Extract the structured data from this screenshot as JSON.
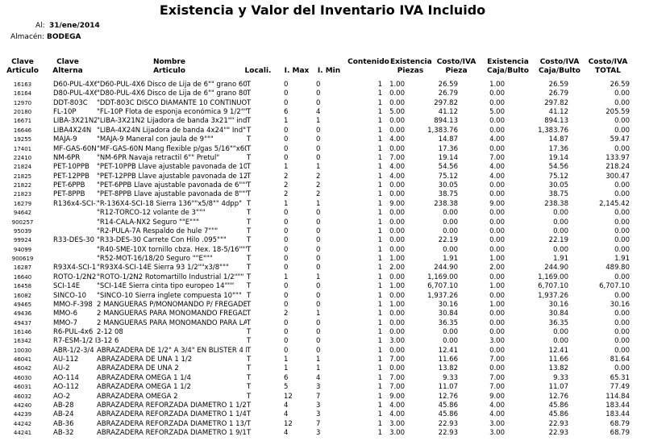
{
  "title": "Existencia y Valor del Inventario IVA Incluido",
  "fecha_label": "Al:",
  "fecha": "31/ene/2014",
  "almacen_label": "Almacén:",
  "almacen": "BODEGA",
  "table": {
    "headers": [
      [
        "Clave",
        "Articulo"
      ],
      [
        "Clave",
        "Alterna"
      ],
      [
        "Nombre",
        "Articulo"
      ],
      [
        "Locali."
      ],
      [
        "I. Max"
      ],
      [
        "I. Min"
      ],
      [
        "Contenido"
      ],
      [
        "Existencia",
        "Piezas"
      ],
      [
        "Costo/IVA",
        "Pieza"
      ],
      [
        "Existencia",
        "Caja/Bulto"
      ],
      [
        "Costo/IVA",
        "Caja/Bulto"
      ],
      [
        "Costo/IVA",
        "TOTAL"
      ]
    ],
    "rows": [
      [
        "16163",
        "D60-PUL-4X6",
        "\"D60-PUL-4X6 Disco de Lija de 6\"\" grano 60\"",
        "T",
        "0",
        "0",
        "1",
        "1.00",
        "26.59",
        "1.00",
        "26.59",
        "26.59"
      ],
      [
        "16164",
        "D80-PUL-4X6",
        "\"D80-PUL-4X6 Disco de Lija de 6\"\" grano 80\"",
        "T",
        "0",
        "0",
        "1",
        "0.00",
        "26.79",
        "0.00",
        "26.79",
        "0.00"
      ],
      [
        "12970",
        "DDT-803C",
        "\"DDT-803C DISCO DIAMANTE 10 CONTINUO",
        "T",
        "0",
        "0",
        "1",
        "0.00",
        "297.82",
        "0.00",
        "297.82",
        "0.00"
      ],
      [
        "20180",
        "FL-10P",
        "\"FL-10P Flota de esponja económica 9 1/2\"\"\"",
        "T",
        "6",
        "4",
        "1",
        "5.00",
        "41.12",
        "5.00",
        "41.12",
        "205.59"
      ],
      [
        "16671",
        "LIBA-3X21N2",
        "\"LIBA-3X21N2 Lijadora de banda 3x21\"\" ind.\"",
        "T",
        "1",
        "1",
        "1",
        "0.00",
        "894.13",
        "0.00",
        "894.13",
        "0.00"
      ],
      [
        "16646",
        "LIBA4X24N",
        "\"LIBA-4X24N Lijadora de banda 4x24\"\" Ind\"",
        "T",
        "0",
        "0",
        "1",
        "0.00",
        "1,383.76",
        "0.00",
        "1,383.76",
        "0.00"
      ],
      [
        "19255",
        "MAJA-9",
        "\"MAJA-9 Maneral con jaula de 9\"\"\"",
        "T",
        "0",
        "0",
        "1",
        "4.00",
        "14.87",
        "4.00",
        "14.87",
        "59.47"
      ],
      [
        "17401",
        "MF-GAS-60N",
        "\"MF-GAS-60N Mang flexible p/gas 5/16\"\"x60\"",
        "T",
        "0",
        "0",
        "1",
        "0.00",
        "17.36",
        "0.00",
        "17.36",
        "0.00"
      ],
      [
        "22410",
        "NM-6PR",
        "\"NM-6PR Navaja retractil 6\"\" Pretul\"",
        "T",
        "0",
        "0",
        "1",
        "7.00",
        "19.14",
        "7.00",
        "19.14",
        "133.97"
      ],
      [
        "21824",
        "PET-10PPB",
        "\"PET-10PPB Llave ajustable pavonada de 10\"\"\"",
        "T",
        "1",
        "1",
        "1",
        "4.00",
        "54.56",
        "4.00",
        "54.56",
        "218.24"
      ],
      [
        "21825",
        "PET-12PPB",
        "\"PET-12PPB Llave ajustable pavonada de 12\"\"\"",
        "T",
        "2",
        "2",
        "1",
        "4.00",
        "75.12",
        "4.00",
        "75.12",
        "300.47"
      ],
      [
        "21822",
        "PET-6PPB",
        "\"PET-6PPB Llave ajustable pavonada de 6\"\"\"",
        "T",
        "2",
        "2",
        "1",
        "0.00",
        "30.05",
        "0.00",
        "30.05",
        "0.00"
      ],
      [
        "21823",
        "PET-8PPB",
        "\"PET-8PPB Llave ajustable pavonada de 8\"\"\"",
        "T",
        "2",
        "2",
        "1",
        "0.00",
        "38.75",
        "0.00",
        "38.75",
        "0.00"
      ],
      [
        "16279",
        "R136x4-SCI-18",
        "\"R-136X4-SCI-18 Sierra 136\"\"x5/8\"\" 4dpp\"",
        "T",
        "1",
        "1",
        "1",
        "9.00",
        "238.38",
        "9.00",
        "238.38",
        "2,145.42"
      ],
      [
        "94642",
        null,
        "\"R12-TORCO-12 volante de 3\"\"\"",
        "T",
        "0",
        "0",
        "1",
        "0.00",
        "0.00",
        "0.00",
        "0.00",
        "0.00"
      ],
      [
        "900257",
        null,
        "\"R14-CALA-NX2 Seguro \"\"E\"\"\"",
        "T",
        "0",
        "0",
        "1",
        "0.00",
        "0.00",
        "0.00",
        "0.00",
        "0.00"
      ],
      [
        "95039",
        null,
        "\"R2-PULA-7A Respaldo de hule 7\"\"\"",
        "T",
        "0",
        "0",
        "1",
        "0.00",
        "0.00",
        "0.00",
        "0.00",
        "0.00"
      ],
      [
        "99924",
        "R33-DES-30",
        "\"R33-DES-30 Carrete Con Hilo .095\"\"\"",
        "T",
        "0",
        "0",
        "1",
        "0.00",
        "22.19",
        "0.00",
        "22.19",
        "0.00"
      ],
      [
        "94099",
        null,
        "\"R40-SME-10X tornillo cbza. Hex. 18-5/16\"\"\"",
        "T",
        "0",
        "0",
        "1",
        "0.00",
        "0.00",
        "0.00",
        "0.00",
        "0.00"
      ],
      [
        "900619",
        null,
        "\"R52-MOT-16/18/20 Seguro \"\"E\"\"\"",
        "T",
        "0",
        "0",
        "1",
        "1.00",
        "1.91",
        "1.00",
        "1.91",
        "1.91"
      ],
      [
        "16287",
        "R93X4-SCI-14E",
        "\"R93X4-SCI-14E Sierra 93 1/2\"\"x3/8\"\"\"",
        "T",
        "0",
        "0",
        "1",
        "2.00",
        "244.90",
        "2.00",
        "244.90",
        "489.80"
      ],
      [
        "16640",
        "ROTO-1/2N2",
        "\"ROTO-1/2N2 Rotomartillo Industrial 1/2\"\"\"",
        "T",
        "1",
        "1",
        "1",
        "0.00",
        "1,169.00",
        "0.00",
        "1,169.00",
        "0.00"
      ],
      [
        "16458",
        "SCI-14E",
        "\"SCI-14E Sierra cinta tipo europeo 14\"\"\"",
        "T",
        "0",
        "0",
        "1",
        "1.00",
        "6,707.10",
        "1.00",
        "6,707.10",
        "6,707.10"
      ],
      [
        "16082",
        "SINCO-10",
        "\"SINCO-10 Sierra inglete compuesta 10\"\"\"",
        "T",
        "0",
        "0",
        "1",
        "0.00",
        "1,937.26",
        "0.00",
        "1,937.26",
        "0.00"
      ],
      [
        "49465",
        "MMO-F-398",
        "2 MANGUERAS P/MONOMANDO P/ FREGADERO",
        "T",
        "0",
        "0",
        "1",
        "1.00",
        "30.16",
        "1.00",
        "30.16",
        "30.16"
      ],
      [
        "49436",
        "MMO-6",
        "2 MANGUERAS PARA MONOMANDO FREGADER",
        "T",
        "2",
        "1",
        "1",
        "0.00",
        "30.84",
        "0.00",
        "30.84",
        "0.00"
      ],
      [
        "49437",
        "MMO-7",
        "2 MANGUERAS PARA MONOMANDO PARA LAVA",
        "T",
        "0",
        "0",
        "1",
        "0.00",
        "36.35",
        "0.00",
        "36.35",
        "0.00"
      ],
      [
        "16146",
        "R6-PUL-4x6",
        "2-12 08",
        "T",
        "0",
        "0",
        "1",
        "0.00",
        "0.00",
        "0.00",
        "0.00",
        "0.00"
      ],
      [
        "16342",
        "R7-ESM-1/2 I",
        "3-12 6",
        "T",
        "0",
        "0",
        "1",
        "3.00",
        "0.00",
        "3.00",
        "0.00",
        "0.00"
      ],
      [
        "10030",
        "ABR-1/2-3/4",
        "ABRAZADERA DE 1/2\" A 3/4\" EN BLISTER 4 PZ",
        "T",
        "0",
        "0",
        "1",
        "0.00",
        "12.41",
        "0.00",
        "12.41",
        "0.00"
      ],
      [
        "46041",
        "AU-112",
        "ABRAZADERA DE UÑA  1 1/2",
        "T",
        "1",
        "1",
        "1",
        "7.00",
        "11.66",
        "7.00",
        "11.66",
        "81.64"
      ],
      [
        "46042",
        "AU-2",
        "ABRAZADERA DE UÑA  2",
        "T",
        "1",
        "1",
        "1",
        "0.00",
        "13.82",
        "0.00",
        "13.82",
        "0.00"
      ],
      [
        "46030",
        "AO-114",
        "ABRAZADERA OMEGA 1 1/4",
        "T",
        "6",
        "4",
        "1",
        "7.00",
        "9.33",
        "7.00",
        "9.33",
        "65.31"
      ],
      [
        "46031",
        "AO-112",
        "ABRAZADERA OMEGA 1 1/2",
        "T",
        "5",
        "3",
        "1",
        "7.00",
        "11.07",
        "7.00",
        "11.07",
        "77.49"
      ],
      [
        "46032",
        "AO-2",
        "ABRAZADERA OMEGA 2",
        "T",
        "12",
        "7",
        "1",
        "9.00",
        "12.76",
        "9.00",
        "12.76",
        "114.84"
      ],
      [
        "44240",
        "AB-28",
        "ABRAZADERA REFORZADA DIAMETRO 1 1/2 X 1",
        "T",
        "4",
        "3",
        "1",
        "4.00",
        "45.86",
        "4.00",
        "45.86",
        "183.44"
      ],
      [
        "44239",
        "AB-24",
        "ABRAZADERA REFORZADA DIAMETRO 1 1/4 X 1",
        "T",
        "4",
        "3",
        "1",
        "4.00",
        "45.86",
        "4.00",
        "45.86",
        "183.44"
      ],
      [
        "44242",
        "AB-36",
        "ABRAZADERA REFORZADA DIAMETRO 1 13/16",
        "T",
        "12",
        "7",
        "1",
        "3.00",
        "22.93",
        "3.00",
        "22.93",
        "68.79"
      ],
      [
        "44241",
        "AB-32",
        "ABRAZADERA REFORZADA DIAMETRO 1 9/16 X",
        "T",
        "4",
        "3",
        "1",
        "3.00",
        "22.93",
        "3.00",
        "22.93",
        "68.79"
      ]
    ]
  }
}
